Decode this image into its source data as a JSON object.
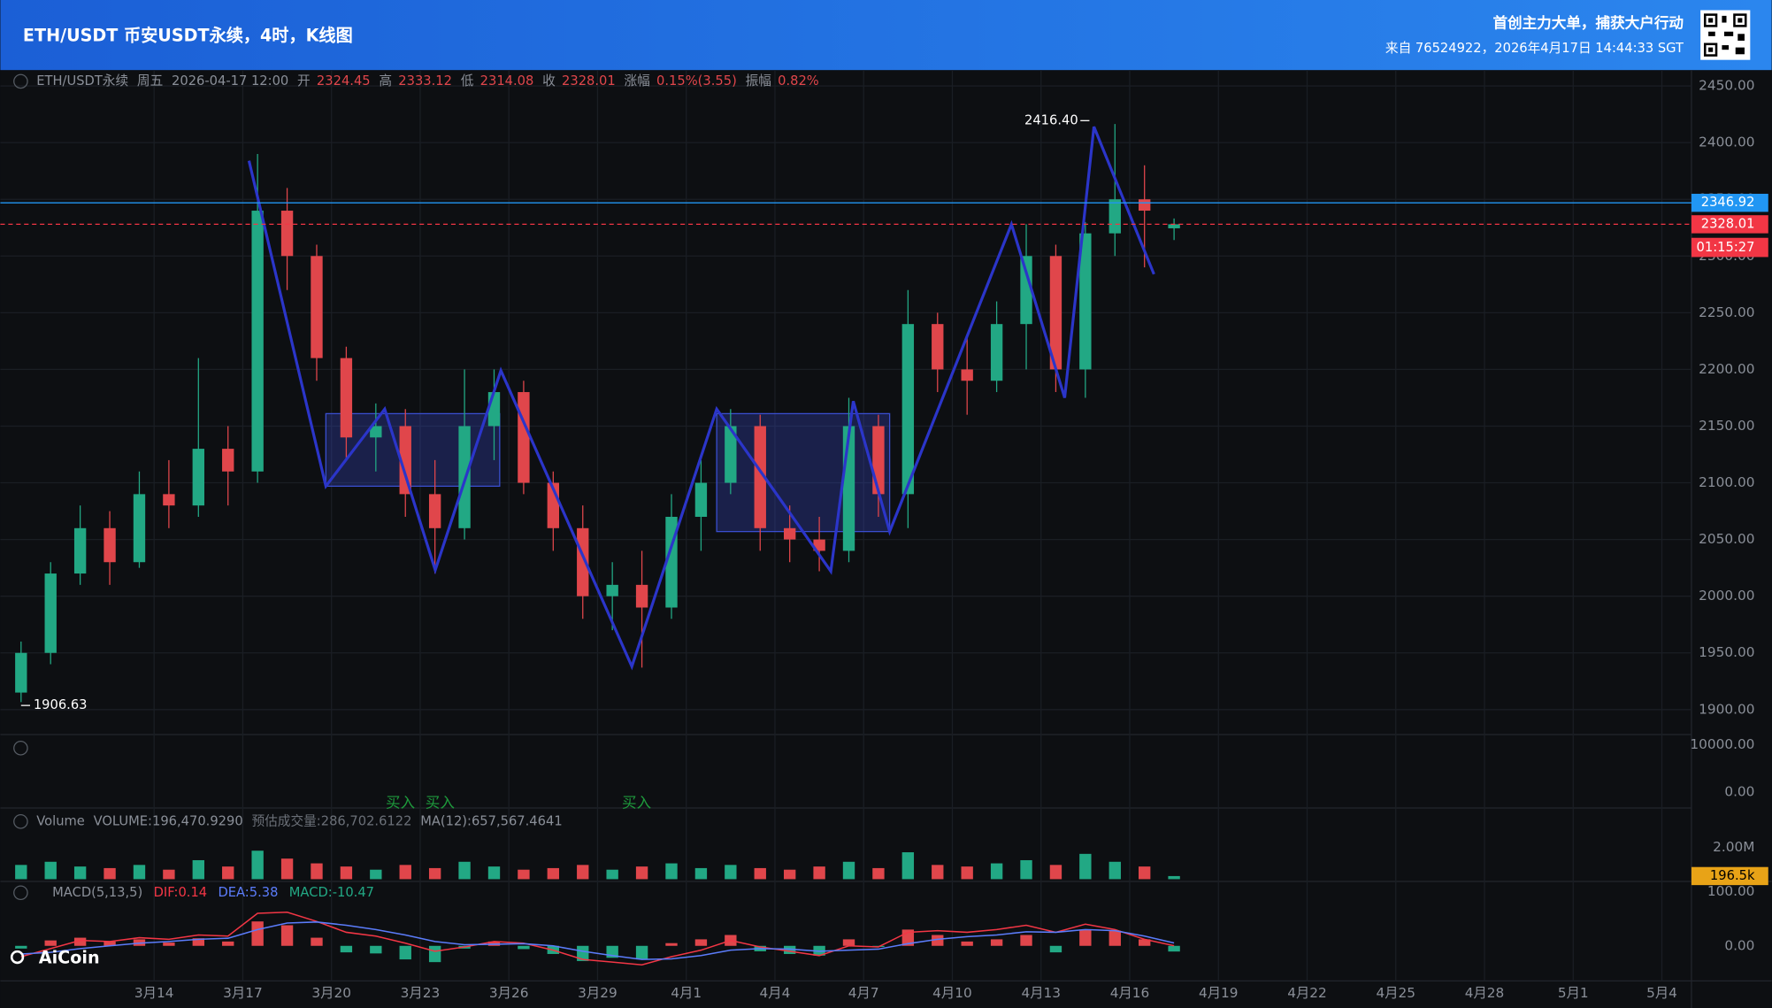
{
  "header": {
    "title": "ETH/USDT 币安USDT永续，4时，K线图",
    "slogan": "首创主力大单，捕获大户行动",
    "source": "来自 76524922，2026年4月17日 14:44:33 SGT"
  },
  "info_bar": {
    "symbol": "ETH/USDT永续",
    "weekday": "周五",
    "time": "2026-04-17 12:00",
    "open_label": "开",
    "open": "2324.45",
    "high_label": "高",
    "high": "2333.12",
    "low_label": "低",
    "low": "2314.08",
    "close_label": "收",
    "close": "2328.01",
    "change_label": "涨幅",
    "change": "0.15%(3.55)",
    "amplitude_label": "振幅",
    "amplitude": "0.82%"
  },
  "watermark": "AiCoin",
  "chart_data": {
    "type": "candlestick",
    "x": [
      -4.5,
      -3.5,
      -2.5,
      -1.5,
      -0.5,
      0.5,
      1.5,
      2.5,
      3.5,
      4.5,
      5.5,
      6.5,
      7.5,
      8.5,
      9.5,
      10.5,
      11.5,
      12.5,
      13.5,
      14.5,
      15.5,
      16.5,
      17.5,
      18.5,
      19.5,
      20.5,
      21.5,
      22.5,
      23.5,
      24.5,
      25.5,
      26.5,
      27.5,
      28.5,
      29.5,
      30.5,
      31.5,
      32.5,
      33.5,
      34.5
    ],
    "open": [
      1915,
      1950,
      2020,
      2060,
      2030,
      2090,
      2080,
      2130,
      2110,
      2340,
      2300,
      2210,
      2140,
      2150,
      2090,
      2060,
      2150,
      2180,
      2100,
      2060,
      2000,
      2010,
      1990,
      2070,
      2100,
      2150,
      2060,
      2050,
      2040,
      2150,
      2090,
      2240,
      2200,
      2190,
      2240,
      2300,
      2200,
      2320,
      2350,
      2324.45
    ],
    "high": [
      1960,
      2030,
      2080,
      2075,
      2110,
      2120,
      2210,
      2150,
      2390,
      2360,
      2310,
      2220,
      2170,
      2165,
      2120,
      2200,
      2200,
      2190,
      2110,
      2080,
      2030,
      2040,
      2090,
      2120,
      2165,
      2160,
      2080,
      2070,
      2175,
      2160,
      2270,
      2250,
      2230,
      2260,
      2328,
      2310,
      2330,
      2416.4,
      2380,
      2333.12
    ],
    "low": [
      1906.63,
      1940,
      2010,
      2010,
      2025,
      2060,
      2070,
      2080,
      2100,
      2270,
      2190,
      2120,
      2110,
      2070,
      2020,
      2050,
      2120,
      2090,
      2040,
      1980,
      1970,
      1937,
      1980,
      2040,
      2090,
      2040,
      2030,
      2022,
      2030,
      2070,
      2060,
      2180,
      2160,
      2180,
      2200,
      2180,
      2175,
      2300,
      2290,
      2314.08
    ],
    "close": [
      1950,
      2020,
      2060,
      2030,
      2090,
      2080,
      2130,
      2110,
      2340,
      2300,
      2210,
      2140,
      2150,
      2090,
      2060,
      2150,
      2180,
      2100,
      2060,
      2000,
      2010,
      1990,
      2070,
      2100,
      2150,
      2060,
      2050,
      2040,
      2150,
      2090,
      2240,
      2200,
      2190,
      2240,
      2300,
      2200,
      2320,
      2350,
      2340,
      2328.01
    ],
    "up_color": "#22a884",
    "down_color": "#e0464b",
    "xlim": [
      -5.2,
      52
    ],
    "xticks": [
      {
        "value": 0,
        "label": "3月14"
      },
      {
        "value": 3,
        "label": "3月17"
      },
      {
        "value": 6,
        "label": "3月20"
      },
      {
        "value": 9,
        "label": "3月23"
      },
      {
        "value": 12,
        "label": "3月26"
      },
      {
        "value": 15,
        "label": "3月29"
      },
      {
        "value": 18,
        "label": "4月1"
      },
      {
        "value": 21,
        "label": "4月4"
      },
      {
        "value": 24,
        "label": "4月7"
      },
      {
        "value": 27,
        "label": "4月10"
      },
      {
        "value": 30,
        "label": "4月13"
      },
      {
        "value": 33,
        "label": "4月16"
      },
      {
        "value": 36,
        "label": "4月19"
      },
      {
        "value": 39,
        "label": "4月22"
      },
      {
        "value": 42,
        "label": "4月25"
      },
      {
        "value": 45,
        "label": "4月28"
      },
      {
        "value": 48,
        "label": "5月1"
      },
      {
        "value": 51,
        "label": "5月4"
      }
    ],
    "ylim": [
      1878,
      2464
    ],
    "yticks": [
      {
        "value": 2450,
        "label": "2450.00"
      },
      {
        "value": 2400,
        "label": "2400.00"
      },
      {
        "value": 2350,
        "label": "2350.00"
      },
      {
        "value": 2300,
        "label": "2300.00"
      },
      {
        "value": 2250,
        "label": "2250.00"
      },
      {
        "value": 2200,
        "label": "2200.00"
      },
      {
        "value": 2150,
        "label": "2150.00"
      },
      {
        "value": 2100,
        "label": "2100.00"
      },
      {
        "value": 2050,
        "label": "2050.00"
      },
      {
        "value": 2000,
        "label": "2000.00"
      },
      {
        "value": 1950,
        "label": "1950.00"
      },
      {
        "value": 1900,
        "label": "1900.00"
      }
    ],
    "grid": true,
    "zigzag": {
      "color": "#2b35c9",
      "x": [
        3.21,
        5.81,
        7.8,
        9.51,
        11.73,
        16.16,
        19.03,
        22.89,
        23.65,
        24.88,
        29.0,
        30.8,
        31.79,
        33.82
      ],
      "y": [
        2384,
        2097,
        2165,
        2023,
        2199,
        1938,
        2165,
        2022,
        2172,
        2057,
        2328,
        2175,
        2414,
        2284
      ]
    },
    "boxes": [
      {
        "x": [
          5.81,
          11.69
        ],
        "y": [
          2097,
          2161
        ]
      },
      {
        "x": [
          19.03,
          24.88
        ],
        "y": [
          2057,
          2161
        ]
      }
    ],
    "price_lines": [
      {
        "value": 2346.92,
        "color": "#2196f3",
        "style": "solid"
      },
      {
        "value": 2328.01,
        "color": "#f23645",
        "style": "dashed"
      }
    ],
    "countdown": "01:15:27",
    "annotations": [
      {
        "label": "2416.40",
        "value": 2416.4,
        "x": 31.79,
        "side": "left"
      },
      {
        "label": "1906.63",
        "value": 1906.63,
        "x": -4.5,
        "side": "right"
      }
    ],
    "signal_pane": {
      "ylim": [
        0,
        10000
      ],
      "yticks": [
        {
          "value": 10000,
          "label": "10000.00"
        },
        {
          "value": 0,
          "label": "0.00"
        }
      ],
      "signals": [
        {
          "label": "买入",
          "x": 8.33
        },
        {
          "label": "买入",
          "x": 9.67
        },
        {
          "label": "买入",
          "x": 16.32
        }
      ],
      "color": "#1e9a3c"
    },
    "volume": {
      "type": "bar",
      "name": "Volume",
      "title": "VOLUME:196,470.9290",
      "estimate": "预估成交量:286,702.6122",
      "ma": "MA(12):657,567.4641",
      "values": [
        900000,
        1100000,
        800000,
        700000,
        900000,
        600000,
        1200000,
        800000,
        1800000,
        1300000,
        1000000,
        800000,
        600000,
        900000,
        700000,
        1100000,
        800000,
        600000,
        700000,
        900000,
        600000,
        800000,
        1000000,
        700000,
        900000,
        700000,
        600000,
        800000,
        1100000,
        700000,
        1700000,
        900000,
        800000,
        1000000,
        1200000,
        900000,
        1600000,
        1100000,
        800000,
        196470.929
      ],
      "ylim": [
        0,
        2000000
      ],
      "yticks": [
        {
          "value": 2000000,
          "label": "2.00M"
        }
      ],
      "current": {
        "value": 196470.929,
        "label": "196.5k",
        "color": "#e8a317"
      }
    },
    "macd": {
      "type": "bar",
      "title": "MACD(5,13,5)",
      "dif_label": "DIF:0.14",
      "dea_label": "DEA:5.38",
      "macd_label": "MACD:-10.47",
      "hist": [
        -5,
        10,
        15,
        8,
        12,
        6,
        14,
        8,
        45,
        38,
        15,
        -12,
        -14,
        -25,
        -30,
        -5,
        8,
        -6,
        -15,
        -28,
        -22,
        -25,
        5,
        12,
        20,
        -10,
        -15,
        -18,
        12,
        -2,
        30,
        20,
        8,
        12,
        20,
        -12,
        30,
        28,
        12,
        -10.47
      ],
      "dif": [
        -20,
        -5,
        10,
        8,
        15,
        12,
        20,
        18,
        60,
        62,
        45,
        25,
        18,
        5,
        -10,
        -2,
        8,
        5,
        -8,
        -25,
        -30,
        -35,
        -20,
        -8,
        10,
        -2,
        -10,
        -18,
        0,
        -2,
        25,
        28,
        25,
        30,
        38,
        25,
        40,
        30,
        12,
        0.14
      ],
      "dea": [
        -15,
        -12,
        -5,
        0,
        5,
        8,
        12,
        14,
        30,
        42,
        44,
        38,
        30,
        20,
        8,
        2,
        3,
        4,
        0,
        -10,
        -18,
        -25,
        -24,
        -18,
        -8,
        -5,
        -6,
        -10,
        -8,
        -6,
        4,
        12,
        17,
        20,
        26,
        25,
        30,
        28,
        18,
        5.38
      ],
      "dif_color": "#f23645",
      "dea_color": "#5b7cfa",
      "ylim": [
        -64.6,
        114.6
      ],
      "yticks": [
        {
          "value": 100,
          "label": "100.00"
        },
        {
          "value": 0,
          "label": "0.00"
        }
      ]
    }
  }
}
